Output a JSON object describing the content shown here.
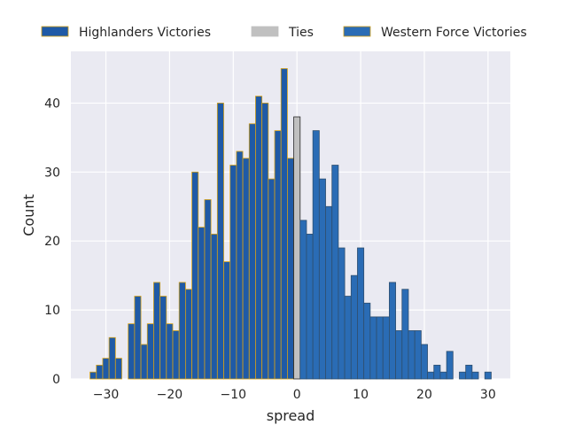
{
  "chart_data": {
    "type": "bar",
    "xlabel": "spread",
    "ylabel": "Count",
    "xlim": [
      -35.5,
      33.5
    ],
    "ylim": [
      0,
      47.5
    ],
    "xticks": [
      -30,
      -20,
      -10,
      0,
      10,
      20,
      30
    ],
    "yticks": [
      0,
      10,
      20,
      30,
      40
    ],
    "grid": true,
    "legend_position": "top",
    "legend": [
      {
        "label": "Highlanders Victories",
        "color": "#1f5aa6"
      },
      {
        "label": "Ties",
        "color": "#c0c0c0"
      },
      {
        "label": "Western Force Victories",
        "color": "#2a6cb5"
      }
    ],
    "series": [
      {
        "name": "Highlanders Victories",
        "color": "#1f5aa6",
        "edge_color": "#d4a017",
        "x": [
          -32,
          -31,
          -30,
          -29,
          -28,
          -26,
          -25,
          -24,
          -23,
          -22,
          -21,
          -20,
          -19,
          -18,
          -17,
          -16,
          -15,
          -14,
          -13,
          -12,
          -11,
          -10,
          -9,
          -8,
          -7,
          -6,
          -5,
          -4,
          -3,
          -2,
          -1
        ],
        "values": [
          1,
          2,
          3,
          6,
          3,
          8,
          12,
          5,
          8,
          14,
          12,
          8,
          7,
          14,
          13,
          30,
          22,
          26,
          21,
          40,
          17,
          31,
          33,
          32,
          37,
          41,
          40,
          29,
          36,
          45,
          32
        ]
      },
      {
        "name": "Ties",
        "color": "#c0c0c0",
        "edge_color": "#262626",
        "x": [
          0
        ],
        "values": [
          38
        ]
      },
      {
        "name": "Western Force Victories",
        "color": "#2a6cb5",
        "edge_color": "#2f4f6f",
        "x": [
          1,
          2,
          3,
          4,
          5,
          6,
          7,
          8,
          9,
          10,
          11,
          12,
          13,
          14,
          15,
          16,
          17,
          18,
          19,
          20,
          21,
          22,
          23,
          24,
          26,
          27,
          28,
          30
        ],
        "values": [
          23,
          21,
          36,
          29,
          25,
          31,
          19,
          12,
          15,
          19,
          11,
          9,
          9,
          9,
          14,
          7,
          13,
          7,
          7,
          5,
          1,
          2,
          1,
          4,
          1,
          2,
          1,
          1
        ]
      }
    ]
  }
}
